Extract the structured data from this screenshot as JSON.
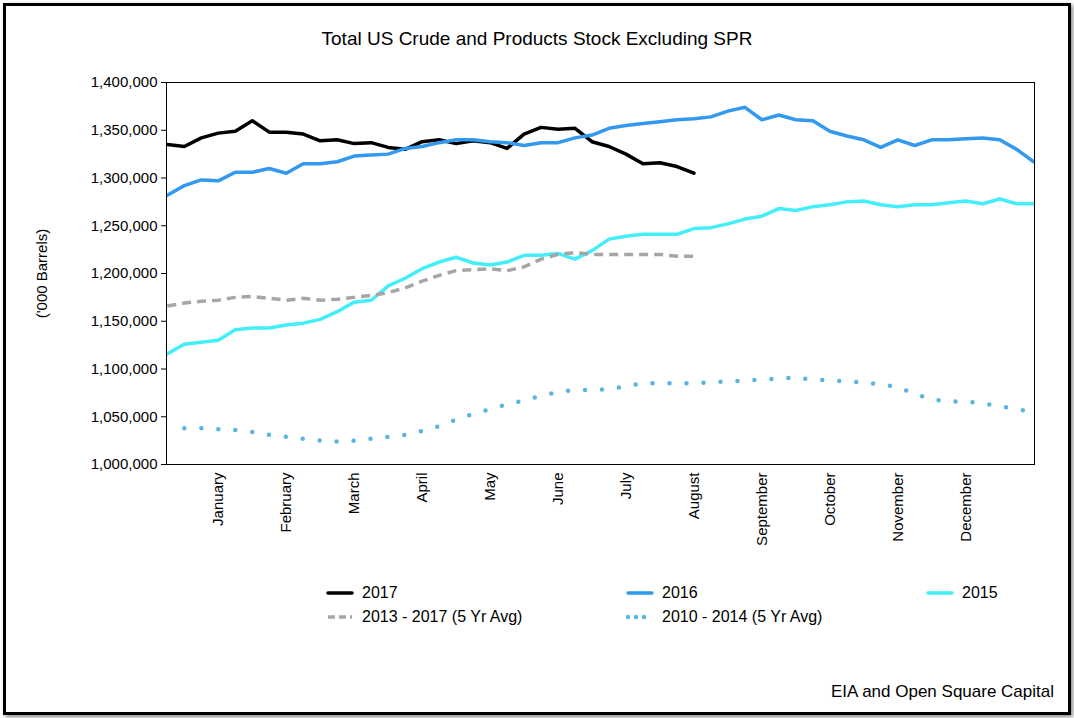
{
  "chart_data": {
    "type": "line",
    "title": "Total US Crude and Products Stock Excluding SPR",
    "y_label": "('000 Barrels)",
    "caption": "EIA and Open Square Capital",
    "categories": [
      null,
      null,
      null,
      "January",
      null,
      null,
      null,
      "February",
      null,
      null,
      null,
      "March",
      null,
      null,
      null,
      "April",
      null,
      null,
      null,
      "May",
      null,
      null,
      null,
      "June",
      null,
      null,
      null,
      "July",
      null,
      null,
      null,
      "August",
      null,
      null,
      null,
      "September",
      null,
      null,
      null,
      "October",
      null,
      null,
      null,
      "November",
      null,
      null,
      null,
      "December",
      null,
      null,
      null,
      null
    ],
    "series": [
      {
        "name": "2017",
        "color": "#000000",
        "line_style": "solid",
        "values": [
          1335000,
          1333000,
          1342000,
          1347000,
          1349000,
          1360000,
          1348000,
          1348000,
          1346000,
          1339000,
          1340000,
          1336000,
          1337000,
          1332000,
          1330000,
          1338000,
          1340000,
          1336000,
          1339000,
          1337000,
          1331000,
          1346000,
          1353000,
          1351000,
          1352000,
          1338000,
          1333000,
          1325000,
          1315000,
          1316000,
          1312000,
          1305000,
          null,
          null,
          null,
          null,
          null,
          null,
          null,
          null,
          null,
          null,
          null,
          null,
          null,
          null,
          null,
          null,
          null,
          null,
          null,
          null
        ]
      },
      {
        "name": "2016",
        "color": "#3399ee",
        "line_style": "solid",
        "values": [
          1282000,
          1292000,
          1298000,
          1297000,
          1306000,
          1306000,
          1310000,
          1305000,
          1315000,
          1315000,
          1317000,
          1323000,
          1324000,
          1325000,
          1331000,
          1333000,
          1337000,
          1340000,
          1340000,
          1338000,
          1337000,
          1334000,
          1337000,
          1337000,
          1342000,
          1345000,
          1352000,
          1355000,
          1357000,
          1359000,
          1361000,
          1362000,
          1364000,
          1370000,
          1374000,
          1361000,
          1366000,
          1361000,
          1360000,
          1349000,
          1344000,
          1340000,
          1332000,
          1340000,
          1334000,
          1340000,
          1340000,
          1341000,
          1342000,
          1340000,
          1330000,
          1317000
        ]
      },
      {
        "name": "2015",
        "color": "#44eef8",
        "line_style": "solid",
        "values": [
          1116000,
          1126000,
          1128000,
          1130000,
          1141000,
          1143000,
          1143000,
          1146000,
          1148000,
          1152000,
          1160000,
          1170000,
          1172000,
          1187000,
          1195000,
          1205000,
          1212000,
          1217000,
          1211000,
          1209000,
          1212000,
          1219000,
          1219000,
          1221000,
          1215000,
          1224000,
          1236000,
          1239000,
          1241000,
          1241000,
          1241000,
          1247000,
          1248000,
          1252000,
          1257000,
          1260000,
          1268000,
          1266000,
          1270000,
          1272000,
          1275000,
          1276000,
          1272000,
          1270000,
          1272000,
          1272000,
          1274000,
          1276000,
          1273000,
          1278000,
          1273000,
          1273000
        ]
      },
      {
        "name": "2013 - 2017 (5 Yr Avg)",
        "color": "#a6a6a6",
        "line_style": "dashed",
        "values": [
          1166000,
          1169000,
          1171000,
          1172000,
          1175000,
          1176000,
          1174000,
          1172000,
          1174000,
          1172000,
          1173000,
          1175000,
          1177000,
          1180000,
          1185000,
          1192000,
          1198000,
          1203000,
          1204000,
          1205000,
          1203000,
          1207000,
          1215000,
          1220000,
          1222000,
          1220000,
          1220000,
          1220000,
          1220000,
          1220000,
          1218000,
          1218000,
          null,
          null,
          null,
          null,
          null,
          null,
          null,
          null,
          null,
          null,
          null,
          null,
          null,
          null,
          null,
          null,
          null,
          null,
          null,
          null
        ]
      },
      {
        "name": "2010 - 2014 (5 Yr Avg)",
        "color": "#5ab4e0",
        "line_style": "dotted",
        "values": [
          null,
          1038000,
          1038000,
          1037000,
          1036000,
          1034000,
          1031000,
          1029000,
          1027000,
          1025000,
          1024000,
          1025000,
          1027000,
          1029000,
          1031000,
          1035000,
          1040000,
          1047000,
          1053000,
          1058000,
          1063000,
          1067000,
          1072000,
          1076000,
          1078000,
          1078000,
          1079000,
          1082000,
          1085000,
          1085000,
          1085000,
          1085000,
          1086000,
          1087000,
          1088000,
          1089000,
          1090000,
          1091000,
          1089000,
          1088000,
          1087000,
          1086000,
          1084000,
          1081000,
          1074000,
          1068000,
          1066000,
          1066000,
          1064000,
          1061000,
          1058000,
          1055000
        ]
      }
    ],
    "ylim": [
      1000000,
      1400000
    ],
    "yticks": [
      {
        "value": 1000000,
        "label": "1,000,000"
      },
      {
        "value": 1050000,
        "label": "1,050,000"
      },
      {
        "value": 1100000,
        "label": "1,100,000"
      },
      {
        "value": 1150000,
        "label": "1,150,000"
      },
      {
        "value": 1200000,
        "label": "1,200,000"
      },
      {
        "value": 1250000,
        "label": "1,250,000"
      },
      {
        "value": 1300000,
        "label": "1,300,000"
      },
      {
        "value": 1350000,
        "label": "1,350,000"
      },
      {
        "value": 1400000,
        "label": "1,400,000"
      }
    ],
    "grid": false,
    "legend": "bottom"
  }
}
